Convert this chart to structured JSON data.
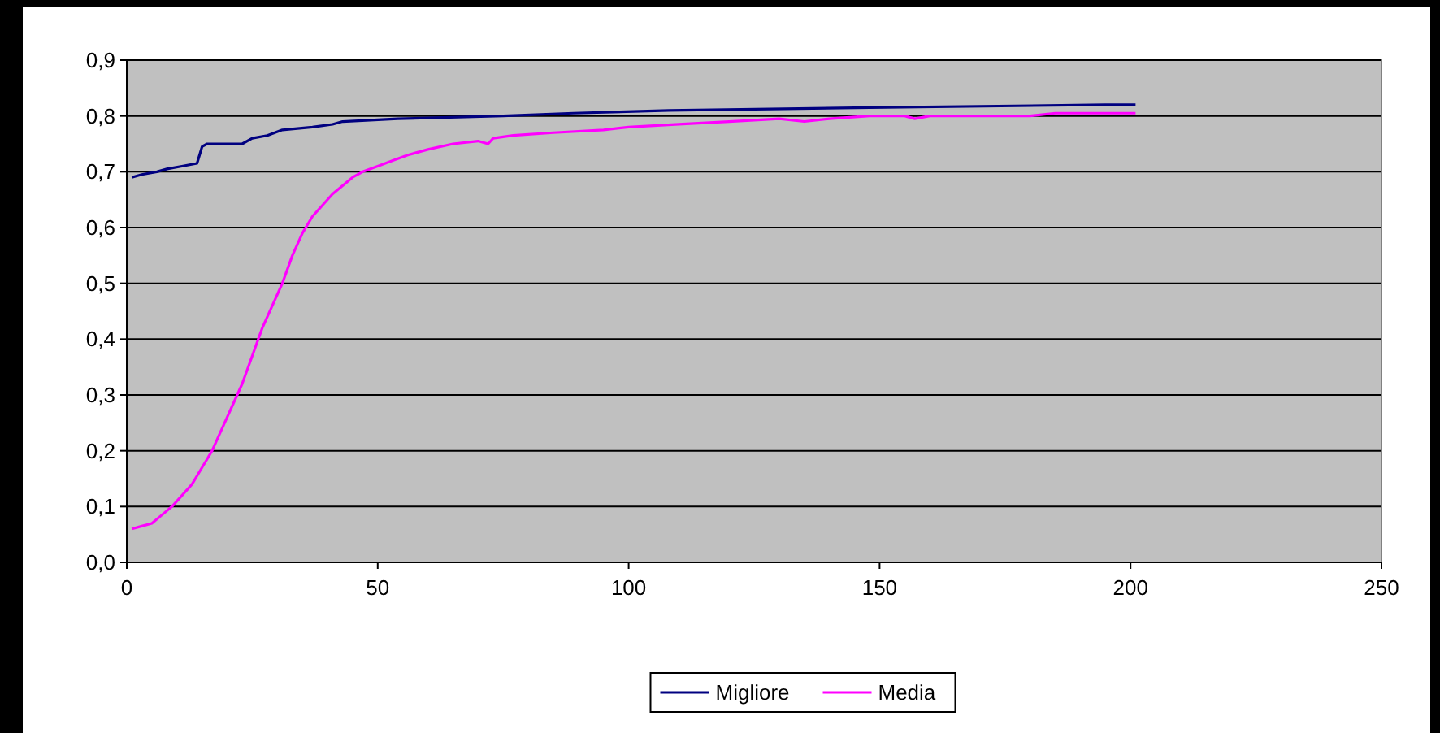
{
  "chart_data": {
    "type": "line",
    "xlim": [
      0,
      250
    ],
    "xticks": [
      0,
      50,
      100,
      150,
      200,
      250
    ],
    "ylim": [
      0,
      0.9
    ],
    "yticks": [
      {
        "value": 0,
        "label": "0,0"
      },
      {
        "value": 0.1,
        "label": "0,1"
      },
      {
        "value": 0.2,
        "label": "0,2"
      },
      {
        "value": 0.3,
        "label": "0,3"
      },
      {
        "value": 0.4,
        "label": "0,4"
      },
      {
        "value": 0.5,
        "label": "0,5"
      },
      {
        "value": 0.6,
        "label": "0,6"
      },
      {
        "value": 0.7,
        "label": "0,7"
      },
      {
        "value": 0.8,
        "label": "0,8"
      },
      {
        "value": 0.9,
        "label": "0,9"
      }
    ],
    "grid": "y",
    "legend": "bottom",
    "marker": "none",
    "line_style": "solid",
    "series": [
      {
        "name": "Migliore",
        "color": "#000080",
        "x": [
          1,
          3,
          6,
          8,
          11,
          14,
          15,
          16,
          23,
          25,
          28,
          31,
          37,
          41,
          43,
          54,
          75,
          89,
          108,
          148,
          195,
          201
        ],
        "values": [
          0.69,
          0.695,
          0.7,
          0.705,
          0.71,
          0.715,
          0.745,
          0.75,
          0.75,
          0.76,
          0.765,
          0.775,
          0.78,
          0.785,
          0.79,
          0.795,
          0.8,
          0.805,
          0.81,
          0.815,
          0.82,
          0.82
        ]
      },
      {
        "name": "Media",
        "color": "#ff00ff",
        "x": [
          1,
          3,
          5,
          7,
          9,
          11,
          13,
          15,
          17,
          19,
          21,
          23,
          25,
          27,
          29,
          31,
          33,
          35,
          37,
          39,
          41,
          43,
          45,
          47,
          50,
          53,
          56,
          60,
          65,
          70,
          72,
          73,
          77,
          85,
          95,
          100,
          110,
          120,
          130,
          135,
          140,
          148,
          155,
          157,
          160,
          180,
          185,
          201
        ],
        "values": [
          0.06,
          0.065,
          0.07,
          0.085,
          0.1,
          0.12,
          0.14,
          0.17,
          0.2,
          0.24,
          0.28,
          0.32,
          0.37,
          0.42,
          0.46,
          0.5,
          0.55,
          0.59,
          0.62,
          0.64,
          0.66,
          0.675,
          0.69,
          0.7,
          0.71,
          0.72,
          0.73,
          0.74,
          0.75,
          0.755,
          0.75,
          0.76,
          0.765,
          0.77,
          0.775,
          0.78,
          0.785,
          0.79,
          0.795,
          0.79,
          0.795,
          0.8,
          0.8,
          0.795,
          0.8,
          0.8,
          0.805,
          0.805
        ]
      }
    ]
  }
}
